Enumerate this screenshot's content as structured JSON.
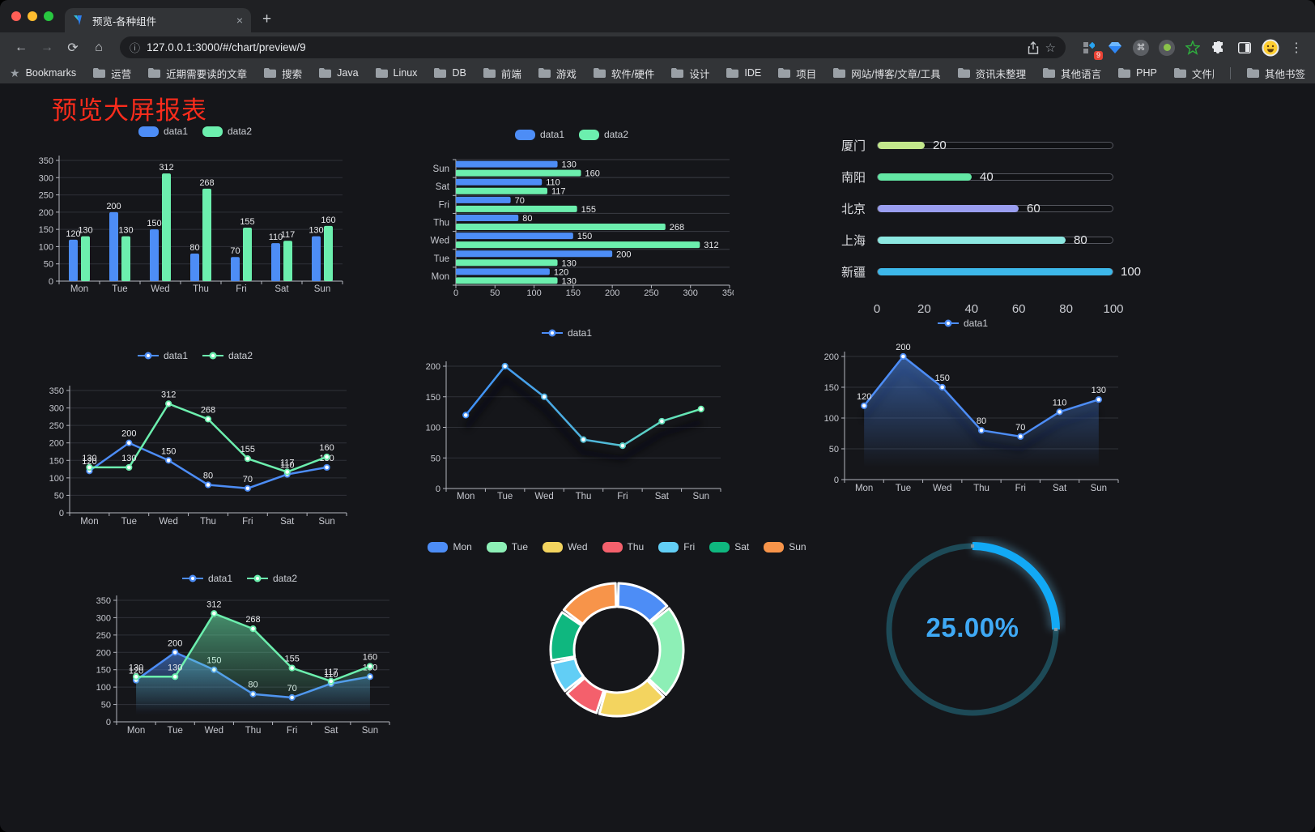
{
  "browser": {
    "tab_title": "预览-各种组件",
    "close_tab": "×",
    "new_tab": "+",
    "url": "127.0.0.1:3000/#/chart/preview/9",
    "extension_badge": "9",
    "bookmarks_root": "Bookmarks",
    "bookmarks": [
      "运营",
      "近期需要读的文章",
      "搜索",
      "Java",
      "Linux",
      "DB",
      "前端",
      "游戏",
      "软件/硬件",
      "设计",
      "IDE",
      "项目",
      "网站/博客/文章/工具",
      "资讯未整理",
      "其他语言",
      "PHP",
      "文件服务器"
    ],
    "overflow_chevron": "»",
    "other_bookmarks": "其他书签"
  },
  "page": {
    "title": "预览大屏报表"
  },
  "chart_data": [
    {
      "id": "bar-vertical",
      "type": "bar",
      "categories": [
        "Mon",
        "Tue",
        "Wed",
        "Thu",
        "Fri",
        "Sat",
        "Sun"
      ],
      "series": [
        {
          "name": "data1",
          "color": "#4d8df6",
          "values": [
            120,
            200,
            150,
            80,
            70,
            110,
            130
          ]
        },
        {
          "name": "data2",
          "color": "#6cefae",
          "values": [
            130,
            130,
            312,
            268,
            155,
            117,
            160
          ]
        }
      ],
      "ylim": [
        0,
        350
      ],
      "ystep": 50,
      "data_labels": true,
      "legend_position": "top"
    },
    {
      "id": "bar-horizontal",
      "type": "bar-horizontal",
      "categories_top_to_bottom": [
        "Sun",
        "Sat",
        "Fri",
        "Thu",
        "Wed",
        "Tue",
        "Mon"
      ],
      "series": [
        {
          "name": "data1",
          "color": "#4d8df6",
          "values_mon_to_sun": [
            120,
            200,
            150,
            80,
            70,
            110,
            130
          ]
        },
        {
          "name": "data2",
          "color": "#6cefae",
          "values_mon_to_sun": [
            130,
            130,
            312,
            268,
            155,
            117,
            160
          ]
        }
      ],
      "xlim": [
        0,
        350
      ],
      "xstep": 50,
      "data_labels": true,
      "legend_position": "top"
    },
    {
      "id": "progress",
      "type": "progress-bars",
      "items": [
        {
          "label": "厦门",
          "value": 20,
          "color": "#c3e88b"
        },
        {
          "label": "南阳",
          "value": 40,
          "color": "#63e7a4"
        },
        {
          "label": "北京",
          "value": 60,
          "color": "#9a9ef0"
        },
        {
          "label": "上海",
          "value": 80,
          "color": "#8ce8e1"
        },
        {
          "label": "新疆",
          "value": 100,
          "color": "#3db8ea"
        }
      ],
      "max": 100,
      "axis_ticks": [
        0,
        20,
        40,
        60,
        80,
        100
      ]
    },
    {
      "id": "line-basic",
      "type": "line",
      "categories": [
        "Mon",
        "Tue",
        "Wed",
        "Thu",
        "Fri",
        "Sat",
        "Sun"
      ],
      "series": [
        {
          "name": "data1",
          "color": "#4d8df6",
          "values": [
            120,
            200,
            150,
            80,
            70,
            110,
            130
          ]
        },
        {
          "name": "data2",
          "color": "#6cefae",
          "values": [
            130,
            130,
            312,
            268,
            155,
            117,
            160
          ]
        }
      ],
      "ylim": [
        0,
        350
      ],
      "ystep": 50,
      "data_labels": true,
      "legend_position": "top"
    },
    {
      "id": "line-gradient",
      "type": "line",
      "categories": [
        "Mon",
        "Tue",
        "Wed",
        "Thu",
        "Fri",
        "Sat",
        "Sun"
      ],
      "series": [
        {
          "name": "data1",
          "color": "#4d8df6",
          "gradient": [
            "#3f8ff8",
            "#68efae"
          ],
          "values": [
            120,
            200,
            150,
            80,
            70,
            110,
            130
          ]
        }
      ],
      "ylim": [
        0,
        200
      ],
      "ystep": 50,
      "data_labels": false,
      "shadow": true,
      "legend_position": "top"
    },
    {
      "id": "line-area",
      "type": "line",
      "categories": [
        "Mon",
        "Tue",
        "Wed",
        "Thu",
        "Fri",
        "Sat",
        "Sun"
      ],
      "series": [
        {
          "name": "data1",
          "color": "#4d8df6",
          "area": true,
          "values": [
            120,
            200,
            150,
            80,
            70,
            110,
            130
          ]
        }
      ],
      "ylim": [
        0,
        200
      ],
      "ystep": 50,
      "data_labels": true,
      "shadow": true,
      "legend_position": "top"
    },
    {
      "id": "line-area-double",
      "type": "line",
      "categories": [
        "Mon",
        "Tue",
        "Wed",
        "Thu",
        "Fri",
        "Sat",
        "Sun"
      ],
      "series": [
        {
          "name": "data1",
          "color": "#4d8df6",
          "area": true,
          "values": [
            120,
            200,
            150,
            80,
            70,
            110,
            130
          ]
        },
        {
          "name": "data2",
          "color": "#6cefae",
          "area": true,
          "values": [
            130,
            130,
            312,
            268,
            155,
            117,
            160
          ]
        }
      ],
      "ylim": [
        0,
        350
      ],
      "ystep": 50,
      "data_labels": true,
      "legend_position": "top"
    },
    {
      "id": "donut",
      "type": "pie",
      "categories": [
        "Mon",
        "Tue",
        "Wed",
        "Thu",
        "Fri",
        "Sat",
        "Sun"
      ],
      "values": [
        120,
        200,
        150,
        80,
        70,
        110,
        130
      ],
      "colors": [
        "#4d8df6",
        "#8defb6",
        "#f3d45f",
        "#f4606c",
        "#62cef5",
        "#0fb77f",
        "#f7944a"
      ],
      "inner_radius_ratio": 0.65,
      "legend_position": "top"
    },
    {
      "id": "gauge",
      "type": "gauge",
      "value_percent": 25,
      "label": "25.00%",
      "arc_color": "#12a9f5",
      "track_color": "#1d4a57",
      "text_color": "#3fa9f5"
    }
  ]
}
